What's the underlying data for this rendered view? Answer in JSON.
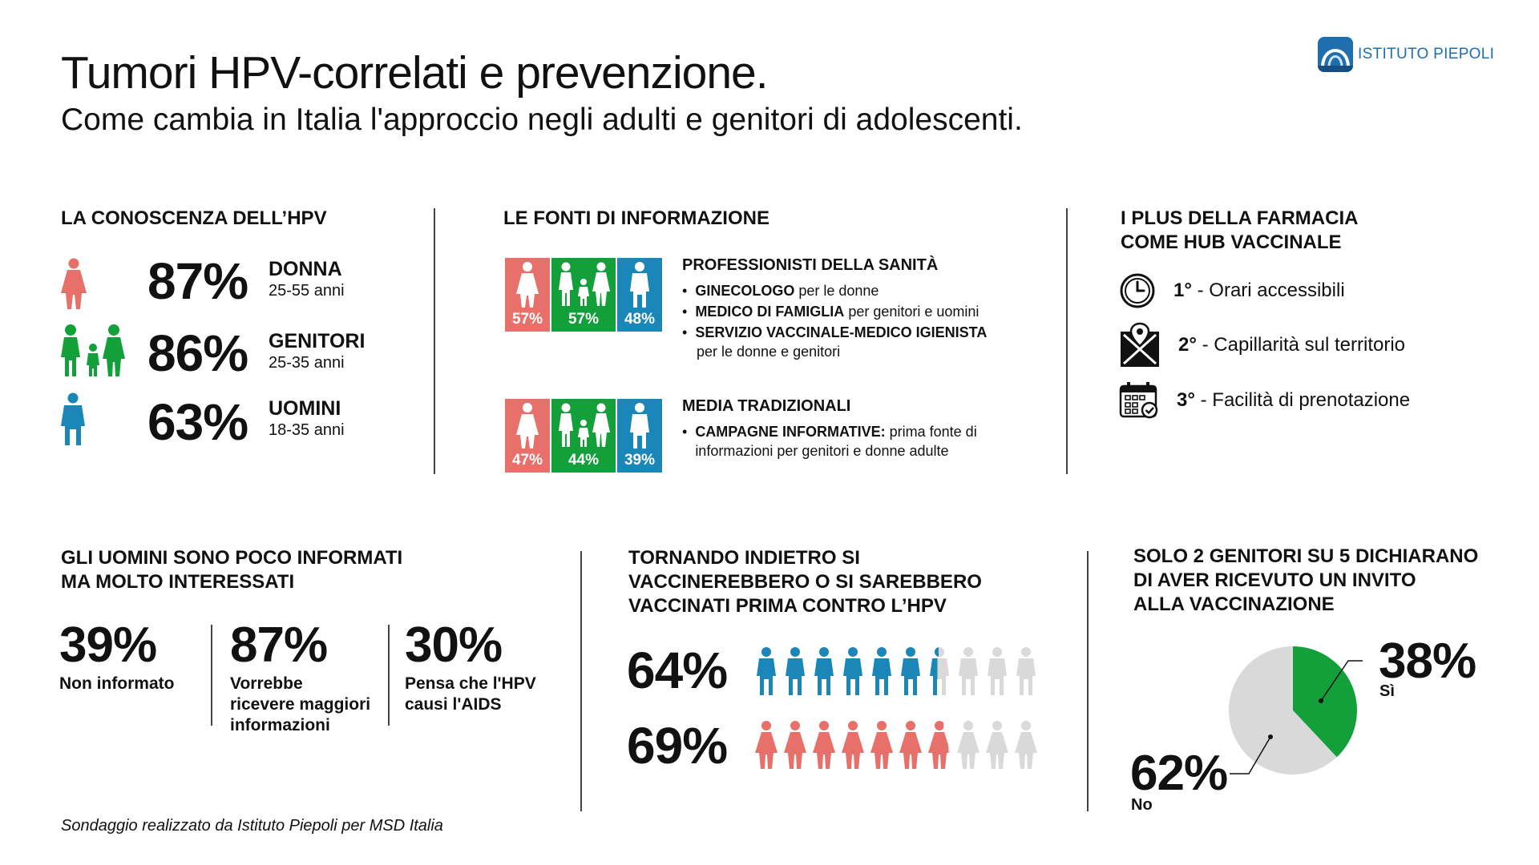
{
  "header": {
    "title": "Tumori HPV-correlati e prevenzione.",
    "subtitle": "Come cambia in Italia l'approccio negli adulti e genitori di adolescenti.",
    "brand": "ISTITUTO PIEPOLI"
  },
  "colors": {
    "red": "#e8706a",
    "green": "#13a03a",
    "blue": "#1b86b8",
    "grey": "#d9d9d9",
    "brand": "#1f6fae"
  },
  "knowledge": {
    "heading": "LA CONOSCENZA DELL’HPV",
    "rows": [
      {
        "pct": "87%",
        "label": "DONNA",
        "age": "25-55 anni",
        "icon": "woman-icon"
      },
      {
        "pct": "86%",
        "label": "GENITORI",
        "age": "25-35 anni",
        "icon": "family-icon"
      },
      {
        "pct": "63%",
        "label": "UOMINI",
        "age": "18-35 anni",
        "icon": "man-icon"
      }
    ]
  },
  "sources": {
    "heading": "LE FONTI DI INFORMAZIONE",
    "blocks": [
      {
        "title": "PROFESSIONISTI DELLA SANITÀ",
        "pcts": [
          "57%",
          "57%",
          "48%"
        ],
        "bullets": [
          {
            "bold": "GINECOLOGO",
            "rest": " per le donne"
          },
          {
            "bold": "MEDICO DI FAMIGLIA",
            "rest": " per genitori e uomini"
          },
          {
            "bold": "SERVIZIO VACCINALE-MEDICO IGIENISTA",
            "rest": "per le donne e genitori"
          }
        ]
      },
      {
        "title": "MEDIA TRADIZIONALI",
        "pcts": [
          "47%",
          "44%",
          "39%"
        ],
        "bullets": [
          {
            "bold": "CAMPAGNE  INFORMATIVE:",
            "rest": " prima fonte di informazioni per genitori e donne adulte"
          }
        ]
      }
    ]
  },
  "pharmacy": {
    "heading_1": "I PLUS DELLA FARMACIA",
    "heading_2": "COME HUB VACCINALE",
    "items": [
      {
        "rank": "1°",
        "text": " - Orari accessibili",
        "icon": "clock-icon"
      },
      {
        "rank": "2°",
        "text": " - Capillarità sul territorio",
        "icon": "map-pin-icon"
      },
      {
        "rank": "3°",
        "text": " - Facilità di prenotazione",
        "icon": "calendar-check-icon"
      }
    ]
  },
  "men": {
    "heading_1": "GLI UOMINI SONO POCO INFORMATI",
    "heading_2": "MA MOLTO INTERESSATI",
    "stats": [
      {
        "pct": "39%",
        "desc_1": "Non informato",
        "desc_2": "",
        "desc_3": ""
      },
      {
        "pct": "87%",
        "desc_1": "Vorrebbe",
        "desc_2": "ricevere maggiori",
        "desc_3": "informazioni"
      },
      {
        "pct": "30%",
        "desc_1": "Pensa che l'HPV",
        "desc_2": "causi l'AIDS",
        "desc_3": ""
      }
    ]
  },
  "back": {
    "heading_1": "TORNANDO INDIETRO SI",
    "heading_2": "VACCINEREBBERO O SI SAREBBERO",
    "heading_3": "VACCINATI PRIMA CONTRO L’HPV",
    "rows": [
      {
        "pct": "64%",
        "value": 64,
        "icon": "man-icon"
      },
      {
        "pct": "69%",
        "value": 69,
        "icon": "woman-icon"
      }
    ]
  },
  "invite": {
    "heading_1": "SOLO 2 GENITORI SU 5 DICHIARANO",
    "heading_2": "DI AVER RICEVUTO UN INVITO",
    "heading_3": "ALLA VACCINAZIONE",
    "yes_pct": "38%",
    "yes_label": "Sì",
    "no_pct": "62%",
    "no_label": "No"
  },
  "chart_data": {
    "type": "pie",
    "categories": [
      "Sì",
      "No"
    ],
    "values": [
      38,
      62
    ]
  },
  "footer": {
    "note": "Sondaggio realizzato da Istituto Piepoli per MSD Italia"
  }
}
